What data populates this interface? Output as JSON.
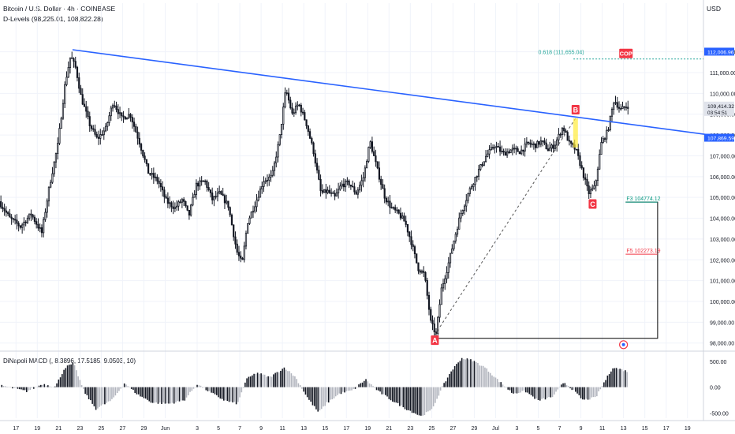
{
  "header": {
    "title": "Bitcoin / U.S. Dollar · 4h · COINBASE",
    "indicator": "D-Levels (98,225.01, 108,822.28)"
  },
  "currency": "USD",
  "chart_data": {
    "type": "candlestick",
    "instrument": "Bitcoin / U.S. Dollar",
    "timeframe": "4h",
    "exchange": "COINBASE",
    "y_ticks": [
      98000,
      99000,
      100000,
      101000,
      102000,
      103000,
      104000,
      105000,
      106000,
      107000,
      108000,
      109000,
      110000,
      111000,
      112000
    ],
    "y_range": [
      97800,
      113200
    ],
    "x_ticks": [
      "17",
      "19",
      "21",
      "23",
      "25",
      "27",
      "29",
      "Jun",
      "3",
      "5",
      "7",
      "9",
      "11",
      "13",
      "15",
      "17",
      "19",
      "21",
      "23",
      "25",
      "27",
      "29",
      "Jul",
      "3",
      "5",
      "7",
      "9",
      "11",
      "13",
      "15",
      "17",
      "19"
    ],
    "x_tick_positions_day": [
      -15,
      -13,
      -11,
      -9,
      -7,
      -5,
      -3,
      -1,
      2,
      4,
      6,
      8,
      10,
      12,
      14,
      16,
      18,
      20,
      22,
      24,
      26,
      28,
      30,
      32,
      34,
      36,
      38,
      40,
      42,
      44,
      46,
      48
    ],
    "price_path": [
      [
        -16.5,
        104800
      ],
      [
        -15.5,
        104000
      ],
      [
        -14.5,
        103600
      ],
      [
        -13.5,
        104200
      ],
      [
        -12.5,
        103300
      ],
      [
        -11.8,
        105500
      ],
      [
        -11.0,
        107500
      ],
      [
        -10.3,
        110500
      ],
      [
        -9.8,
        111800
      ],
      [
        -9.3,
        111200
      ],
      [
        -8.8,
        109800
      ],
      [
        -8.0,
        108500
      ],
      [
        -7.3,
        107800
      ],
      [
        -6.5,
        108300
      ],
      [
        -5.8,
        109600
      ],
      [
        -5.0,
        108800
      ],
      [
        -4.2,
        109000
      ],
      [
        -3.3,
        107600
      ],
      [
        -2.5,
        106200
      ],
      [
        -1.6,
        105800
      ],
      [
        -0.8,
        104800
      ],
      [
        0.0,
        104500
      ],
      [
        0.7,
        104900
      ],
      [
        1.3,
        104100
      ],
      [
        2.0,
        105600
      ],
      [
        2.8,
        105800
      ],
      [
        3.5,
        104900
      ],
      [
        4.2,
        105200
      ],
      [
        5.0,
        104600
      ],
      [
        5.8,
        102400
      ],
      [
        6.3,
        101800
      ],
      [
        6.8,
        103800
      ],
      [
        7.6,
        104800
      ],
      [
        8.3,
        105800
      ],
      [
        9.1,
        106000
      ],
      [
        9.8,
        107800
      ],
      [
        10.4,
        110200
      ],
      [
        11.0,
        109000
      ],
      [
        11.6,
        109500
      ],
      [
        12.3,
        108600
      ],
      [
        13.0,
        107200
      ],
      [
        13.7,
        105200
      ],
      [
        14.3,
        105300
      ],
      [
        15.0,
        105000
      ],
      [
        15.6,
        105600
      ],
      [
        16.3,
        105700
      ],
      [
        17.0,
        105200
      ],
      [
        17.7,
        106000
      ],
      [
        18.3,
        107700
      ],
      [
        19.0,
        106300
      ],
      [
        19.7,
        105000
      ],
      [
        20.3,
        104500
      ],
      [
        21.0,
        104200
      ],
      [
        21.6,
        103800
      ],
      [
        22.2,
        102800
      ],
      [
        22.8,
        101600
      ],
      [
        23.4,
        101300
      ],
      [
        24.0,
        99000
      ],
      [
        24.5,
        98400
      ],
      [
        25.0,
        100600
      ],
      [
        25.6,
        101700
      ],
      [
        26.2,
        103000
      ],
      [
        26.8,
        104200
      ],
      [
        27.6,
        105300
      ],
      [
        28.4,
        106200
      ],
      [
        29.2,
        107000
      ],
      [
        30.0,
        107500
      ],
      [
        30.8,
        107100
      ],
      [
        31.6,
        107300
      ],
      [
        32.4,
        107200
      ],
      [
        33.1,
        107600
      ],
      [
        33.8,
        107500
      ],
      [
        34.4,
        107700
      ],
      [
        35.0,
        107300
      ],
      [
        35.6,
        107500
      ],
      [
        36.4,
        108400
      ],
      [
        37.0,
        107600
      ],
      [
        37.6,
        107300
      ],
      [
        38.2,
        106300
      ],
      [
        38.8,
        105200
      ],
      [
        39.4,
        105500
      ],
      [
        40.0,
        107600
      ],
      [
        40.6,
        108200
      ],
      [
        41.2,
        109700
      ],
      [
        41.8,
        109200
      ],
      [
        42.4,
        109400
      ]
    ],
    "trendline": {
      "from": [
        -9.7,
        112100
      ],
      "to": [
        51.6,
        107900
      ],
      "color": "#2962ff"
    },
    "fib_level": {
      "label": "0.618 (111,655.04)",
      "value": 111655.04,
      "color": "#26a69a"
    },
    "cop_label": "COP",
    "projections": [
      {
        "label": "F3 104774.12",
        "value": 104774.12,
        "color": "#089981"
      },
      {
        "label": "F5 102273.19",
        "value": 102273.19,
        "color": "#f23645"
      }
    ],
    "abc_points": [
      {
        "label": "A",
        "day": 24.3,
        "value": 98400
      },
      {
        "label": "B",
        "day": 37.5,
        "value": 108800
      },
      {
        "label": "C",
        "day": 39.1,
        "value": 105100
      }
    ],
    "d_level_box": {
      "low": 98225.01,
      "high": 108822.28
    },
    "price_labels": [
      {
        "text": "112,006.96",
        "value": 112006.96,
        "bg": "#2962ff"
      },
      {
        "text": "109,414.32",
        "value": 109414.32,
        "bg": "#e0e3eb",
        "sub": "03:54:51"
      },
      {
        "text": "107,869.59",
        "value": 107869.59,
        "bg": "#2962ff"
      }
    ],
    "macd": {
      "title": "DiNapoli MACD (, 8.3896, 17.5185, 9.0503, 10)",
      "ticks": [
        500,
        0,
        -500
      ],
      "tick_labels": [
        "500.00",
        "0.00",
        "-500.00"
      ],
      "range": [
        -600,
        650
      ],
      "wave": [
        [
          -16.5,
          40
        ],
        [
          -14.0,
          -80
        ],
        [
          -12.5,
          60
        ],
        [
          -11.3,
          10
        ],
        [
          -10.4,
          380
        ],
        [
          -9.6,
          460
        ],
        [
          -8.6,
          -90
        ],
        [
          -7.5,
          -420
        ],
        [
          -6.0,
          -250
        ],
        [
          -4.8,
          80
        ],
        [
          -3.6,
          -140
        ],
        [
          -2.2,
          -300
        ],
        [
          -0.6,
          -320
        ],
        [
          0.8,
          -250
        ],
        [
          2.0,
          60
        ],
        [
          3.4,
          -120
        ],
        [
          4.6,
          -260
        ],
        [
          5.8,
          -320
        ],
        [
          6.6,
          150
        ],
        [
          7.6,
          280
        ],
        [
          8.8,
          190
        ],
        [
          10.2,
          380
        ],
        [
          11.2,
          200
        ],
        [
          12.4,
          -220
        ],
        [
          13.4,
          -490
        ],
        [
          14.2,
          -300
        ],
        [
          15.4,
          -120
        ],
        [
          16.6,
          -60
        ],
        [
          17.8,
          150
        ],
        [
          19.0,
          -80
        ],
        [
          20.3,
          -260
        ],
        [
          21.6,
          -420
        ],
        [
          23.0,
          -560
        ],
        [
          24.0,
          -440
        ],
        [
          25.0,
          0
        ],
        [
          25.8,
          300
        ],
        [
          26.8,
          560
        ],
        [
          27.8,
          520
        ],
        [
          29.0,
          380
        ],
        [
          30.3,
          120
        ],
        [
          31.6,
          -120
        ],
        [
          32.8,
          -80
        ],
        [
          34.0,
          -260
        ],
        [
          35.4,
          -180
        ],
        [
          36.4,
          100
        ],
        [
          37.2,
          -40
        ],
        [
          38.2,
          -250
        ],
        [
          39.4,
          -200
        ],
        [
          40.2,
          100
        ],
        [
          41.0,
          380
        ],
        [
          41.8,
          340
        ],
        [
          42.4,
          300
        ]
      ]
    }
  }
}
